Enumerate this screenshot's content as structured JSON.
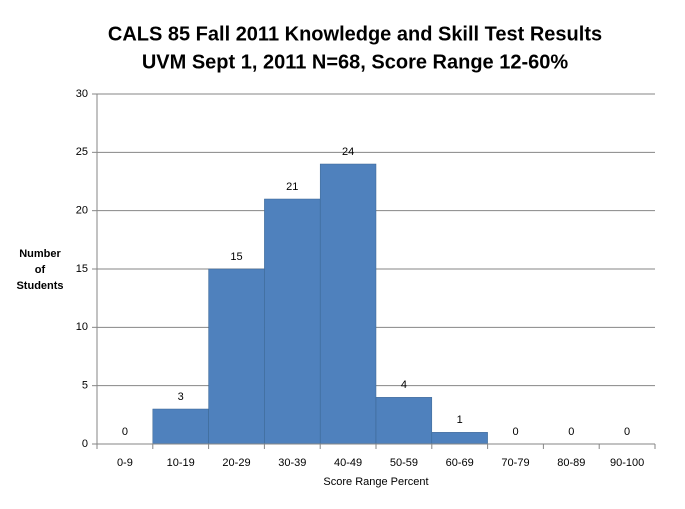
{
  "chart_data": {
    "type": "bar",
    "title": [
      "CALS 85 Fall 2011 Knowledge and Skill Test Results",
      "UVM Sept 1, 2011 N=68, Score Range 12-60%"
    ],
    "ylabel": [
      "Number",
      "of",
      "Students"
    ],
    "xlabel": "Score Range Percent",
    "categories": [
      "0-9",
      "10-19",
      "20-29",
      "30-39",
      "40-49",
      "50-59",
      "60-69",
      "70-79",
      "80-89",
      "90-100"
    ],
    "values": [
      0,
      3,
      15,
      21,
      24,
      4,
      1,
      0,
      0,
      0
    ],
    "color": "#4f81bd",
    "ylim": [
      0,
      30
    ],
    "yticks": [
      0,
      5,
      10,
      15,
      20,
      25,
      30
    ],
    "grid": true
  }
}
